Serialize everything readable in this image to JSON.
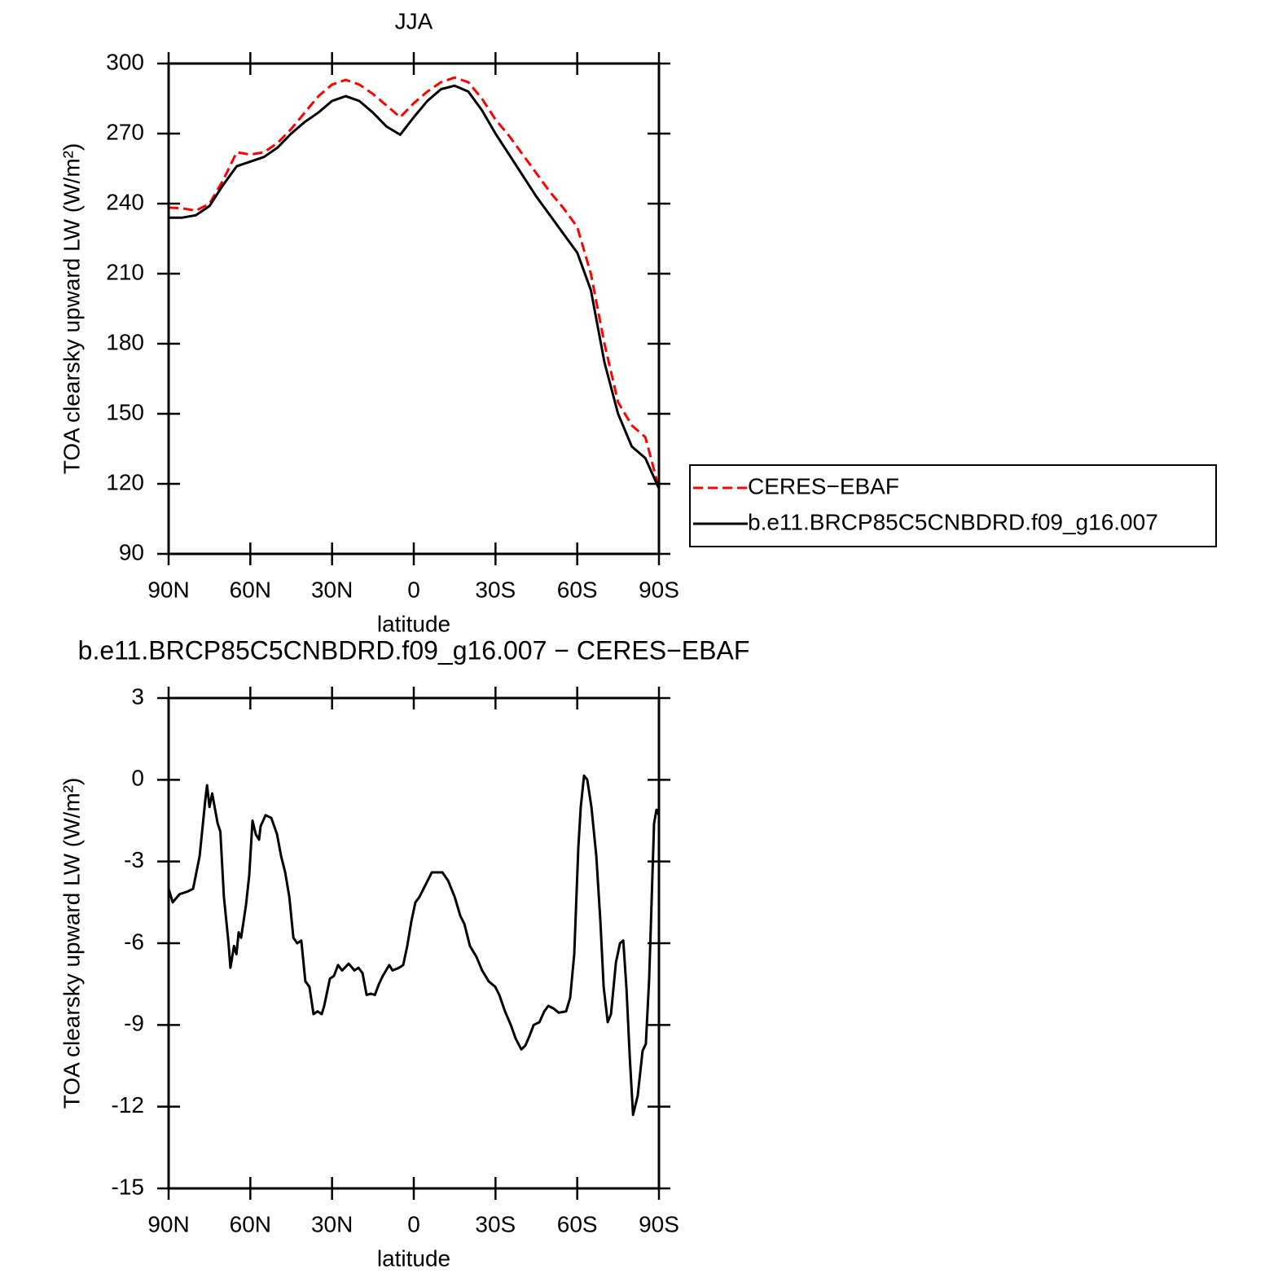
{
  "chart_data": [
    {
      "type": "line",
      "title": "JJA",
      "ylabel": "TOA clearsky upward LW (W/m²)",
      "xlabel": "latitude",
      "x": [
        90,
        85,
        80,
        75,
        70,
        65,
        60,
        55,
        50,
        45,
        40,
        35,
        30,
        25,
        20,
        15,
        10,
        5,
        0,
        -5,
        -10,
        -15,
        -20,
        -25,
        -30,
        -35,
        -40,
        -45,
        -50,
        -55,
        -60,
        -65,
        -70,
        -75,
        -80,
        -85,
        -90
      ],
      "series": [
        {
          "name": "CERES−EBAF",
          "color": "#ff0000",
          "line_style": "dashed",
          "values": [
            238.3,
            238,
            237,
            240,
            250,
            262,
            261,
            262,
            266,
            272,
            279,
            286,
            291,
            293,
            291,
            287,
            282,
            277,
            283,
            288,
            292,
            294,
            292,
            285,
            276,
            269,
            261,
            253,
            245,
            238,
            230,
            210,
            180,
            155,
            145,
            140,
            118
          ]
        },
        {
          "name": "b.e11.BRCP85C5CNBDRD.f09_g16.007",
          "color": "#000000",
          "line_style": "solid",
          "values": [
            234,
            234,
            235,
            239,
            248,
            256,
            258,
            260,
            264,
            270,
            275,
            279,
            284,
            286,
            284,
            279,
            273,
            269.5,
            277,
            284,
            289,
            290.5,
            288,
            280,
            270,
            261,
            252,
            243,
            235,
            227,
            219,
            203,
            172,
            150,
            136,
            131,
            118
          ]
        }
      ],
      "xlim": [
        90,
        -90
      ],
      "xticks": [
        {
          "value": 90,
          "label": "90N"
        },
        {
          "value": 60,
          "label": "60N"
        },
        {
          "value": 30,
          "label": "30N"
        },
        0,
        {
          "value": -30,
          "label": "30S"
        },
        {
          "value": -60,
          "label": "60S"
        },
        {
          "value": -90,
          "label": "90S"
        }
      ],
      "ylim": [
        90,
        300
      ],
      "yticks": [
        90,
        120,
        150,
        180,
        210,
        240,
        270,
        300
      ],
      "legend": "right"
    },
    {
      "type": "line",
      "title": "b.e11.BRCP85C5CNBDRD.f09_g16.007 − CERES−EBAF",
      "ylabel": "TOA clearsky upward LW (W/m²)",
      "xlabel": "latitude",
      "x": [
        90,
        88.5,
        86,
        83,
        81,
        78.6,
        76.5,
        75.9,
        75,
        74,
        72,
        71,
        69.7,
        68,
        67.3,
        66,
        65.1,
        64.3,
        63.4,
        61.6,
        60.4,
        59.2,
        58,
        56.8,
        56.2,
        54.4,
        52.3,
        50.2,
        48.7,
        47.2,
        45.7,
        44.2,
        42.8,
        41.3,
        39.8,
        38.3,
        36.8,
        35.3,
        33.8,
        32.9,
        30.8,
        29.3,
        27.8,
        26.3,
        23.9,
        21.8,
        20.3,
        18.8,
        17.3,
        15.8,
        14.3,
        12.8,
        11.4,
        9,
        7.8,
        5.4,
        3.9,
        2.4,
        0.9,
        -0.6,
        -2.1,
        -3.6,
        -5.1,
        -6.6,
        -8.7,
        -10.5,
        -12.6,
        -15,
        -17.1,
        -18.6,
        -20.6,
        -23,
        -25.1,
        -27.5,
        -29.9,
        -31.4,
        -33.5,
        -35.6,
        -37.4,
        -39.5,
        -41,
        -42.5,
        -44,
        -46.1,
        -47.9,
        -49.4,
        -51.4,
        -53.2,
        -55.9,
        -57.4,
        -58.9,
        -60.4,
        -61.3,
        -62.5,
        -63.7,
        -65.2,
        -67,
        -68.5,
        -69.7,
        -71.2,
        -72.4,
        -74.2,
        -75.7,
        -76.9,
        -78.1,
        -79.3,
        -80.5,
        -82.2,
        -84,
        -85.2,
        -86.4,
        -88.2,
        -89.1,
        -90
      ],
      "values": [
        -4,
        -4.5,
        -4.2,
        -4.1,
        -4,
        -2.8,
        -0.7,
        -0.2,
        -1,
        -0.5,
        -1.6,
        -1.9,
        -4.3,
        -6,
        -6.9,
        -6.1,
        -6.4,
        -5.6,
        -5.8,
        -4.6,
        -3.5,
        -1.5,
        -2,
        -2.2,
        -1.7,
        -1.3,
        -1.4,
        -2,
        -2.8,
        -3.4,
        -4.3,
        -5.8,
        -6,
        -5.9,
        -7.4,
        -7.6,
        -8.6,
        -8.5,
        -8.6,
        -8.3,
        -7.3,
        -7.2,
        -6.8,
        -7,
        -6.75,
        -7,
        -6.9,
        -7.1,
        -7.9,
        -7.85,
        -7.9,
        -7.5,
        -7.2,
        -6.8,
        -7,
        -6.9,
        -6.8,
        -6.1,
        -5.2,
        -4.5,
        -4.3,
        -4,
        -3.7,
        -3.4,
        -3.4,
        -3.4,
        -3.7,
        -4.3,
        -5,
        -5.3,
        -6.1,
        -6.5,
        -7,
        -7.4,
        -7.6,
        -7.9,
        -8.5,
        -9,
        -9.5,
        -9.9,
        -9.75,
        -9.4,
        -9,
        -8.9,
        -8.5,
        -8.3,
        -8.4,
        -8.55,
        -8.5,
        -8,
        -6.4,
        -2.5,
        -1,
        0.15,
        0,
        -1,
        -2.8,
        -5.2,
        -7.6,
        -8.9,
        -8.6,
        -6.7,
        -6,
        -5.9,
        -7.7,
        -10.2,
        -12.3,
        -11.6,
        -9.95,
        -9.7,
        -7.3,
        -1.6,
        -1.1,
        -1.3
      ],
      "color": "#000000",
      "line_style": "solid",
      "xlim": [
        90,
        -90
      ],
      "xticks": [
        {
          "value": 90,
          "label": "90N"
        },
        {
          "value": 60,
          "label": "60N"
        },
        {
          "value": 30,
          "label": "30N"
        },
        0,
        {
          "value": -30,
          "label": "30S"
        },
        {
          "value": -60,
          "label": "60S"
        },
        {
          "value": -90,
          "label": "90S"
        }
      ],
      "ylim": [
        -15,
        3
      ],
      "yticks": [
        -15,
        -12,
        -9,
        -6,
        -3,
        0,
        3
      ]
    }
  ]
}
